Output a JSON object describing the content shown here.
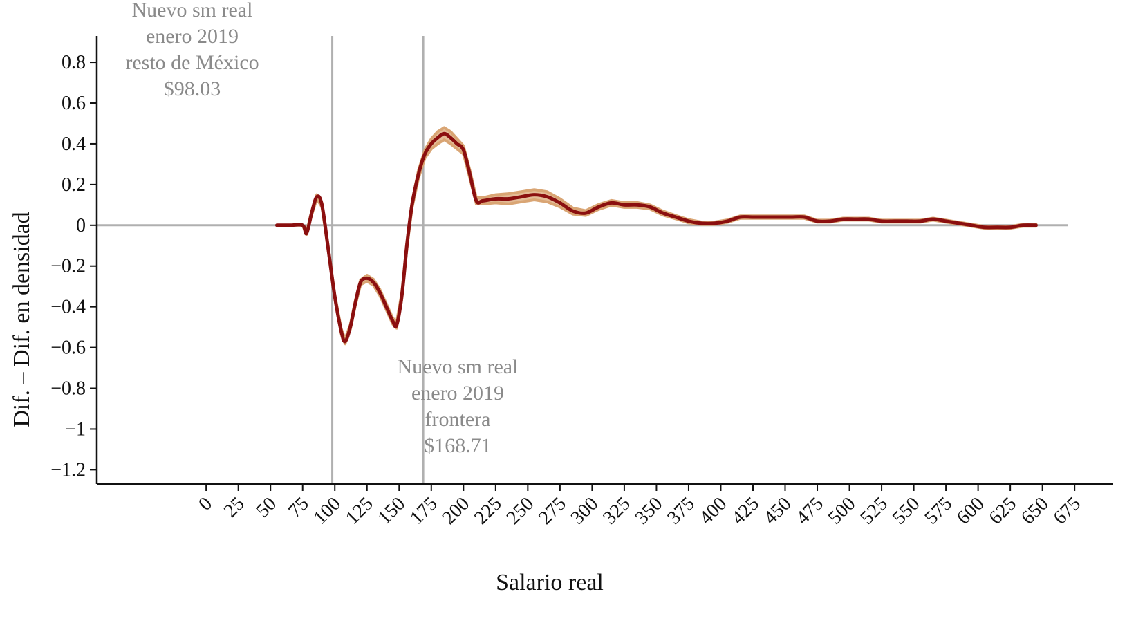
{
  "chart_data": {
    "type": "line",
    "title": "",
    "xlabel": "Salario real",
    "ylabel": "Dif. – Dif. en densidad",
    "xlim": [
      -85,
      705
    ],
    "ylim": [
      -1.27,
      0.97
    ],
    "xticks": [
      0,
      25,
      50,
      75,
      100,
      125,
      150,
      175,
      200,
      225,
      250,
      275,
      300,
      325,
      350,
      375,
      400,
      425,
      450,
      475,
      500,
      525,
      550,
      575,
      600,
      625,
      650,
      675
    ],
    "yticks": [
      0.8,
      0.6,
      0.4,
      0.2,
      0,
      -0.2,
      -0.4,
      -0.6,
      -0.8,
      -1,
      -1.2
    ],
    "ytick_labels": [
      "0.8",
      "0.6",
      "0.4",
      "0.2",
      "0",
      "−0.2",
      "−0.4",
      "−0.6",
      "−0.8",
      "−1",
      "−1.2"
    ],
    "grid": false,
    "colors": {
      "line": "#8b0f0f",
      "band": "#d9a574",
      "reference": "#b0b0b0",
      "annotation": "#8a8a8a"
    },
    "series": [
      {
        "x": [
          55,
          65,
          75,
          78,
          82,
          86,
          90,
          95,
          100,
          105,
          108,
          112,
          116,
          120,
          125,
          130,
          135,
          140,
          145,
          148,
          152,
          156,
          160,
          165,
          170,
          175,
          180,
          185,
          190,
          195,
          200,
          205,
          210,
          215,
          225,
          235,
          245,
          255,
          265,
          275,
          285,
          295,
          305,
          315,
          325,
          335,
          345,
          355,
          365,
          375,
          385,
          395,
          405,
          415,
          425,
          435,
          445,
          455,
          465,
          475,
          485,
          495,
          505,
          515,
          525,
          535,
          545,
          555,
          565,
          575,
          585,
          595,
          605,
          615,
          625,
          635,
          645
        ],
        "y": [
          0,
          0,
          0,
          -0.04,
          0.06,
          0.14,
          0.1,
          -0.12,
          -0.35,
          -0.52,
          -0.57,
          -0.5,
          -0.38,
          -0.28,
          -0.26,
          -0.28,
          -0.33,
          -0.4,
          -0.47,
          -0.49,
          -0.35,
          -0.1,
          0.1,
          0.25,
          0.35,
          0.4,
          0.43,
          0.45,
          0.43,
          0.4,
          0.37,
          0.25,
          0.12,
          0.12,
          0.13,
          0.13,
          0.14,
          0.15,
          0.14,
          0.11,
          0.07,
          0.06,
          0.09,
          0.11,
          0.1,
          0.1,
          0.09,
          0.06,
          0.04,
          0.02,
          0.01,
          0.01,
          0.02,
          0.04,
          0.04,
          0.04,
          0.04,
          0.04,
          0.04,
          0.02,
          0.02,
          0.03,
          0.03,
          0.03,
          0.02,
          0.02,
          0.02,
          0.02,
          0.03,
          0.02,
          0.01,
          0.0,
          -0.01,
          -0.01,
          -0.01,
          0.0,
          0.0
        ],
        "band_halfwidth": [
          0,
          0,
          0,
          0.005,
          0.01,
          0.01,
          0.01,
          0.01,
          0.01,
          0.012,
          0.012,
          0.012,
          0.012,
          0.012,
          0.015,
          0.015,
          0.015,
          0.015,
          0.015,
          0.015,
          0.015,
          0.015,
          0.015,
          0.02,
          0.02,
          0.025,
          0.03,
          0.03,
          0.03,
          0.025,
          0.02,
          0.02,
          0.015,
          0.015,
          0.02,
          0.025,
          0.025,
          0.025,
          0.025,
          0.02,
          0.015,
          0.012,
          0.012,
          0.012,
          0.012,
          0.012,
          0.01,
          0.01,
          0.008,
          0.008,
          0.006,
          0.006,
          0.006,
          0.006,
          0.006,
          0.006,
          0.006,
          0.006,
          0.006,
          0.005,
          0.005,
          0.005,
          0.005,
          0.005,
          0.005,
          0.005,
          0.005,
          0.005,
          0.005,
          0.005,
          0.005,
          0.005,
          0.005,
          0.005,
          0.005,
          0.005,
          0.005
        ]
      }
    ],
    "reference_lines": [
      {
        "x": 98.03,
        "label_lines": [
          "Nuevo sm real",
          "enero 2019",
          "resto de México",
          "$98.03"
        ]
      },
      {
        "x": 168.71,
        "label_lines": [
          "Nuevo sm real",
          "enero 2019",
          "frontera",
          "$168.71"
        ]
      }
    ],
    "horizontal_reference": {
      "y": 0
    }
  }
}
